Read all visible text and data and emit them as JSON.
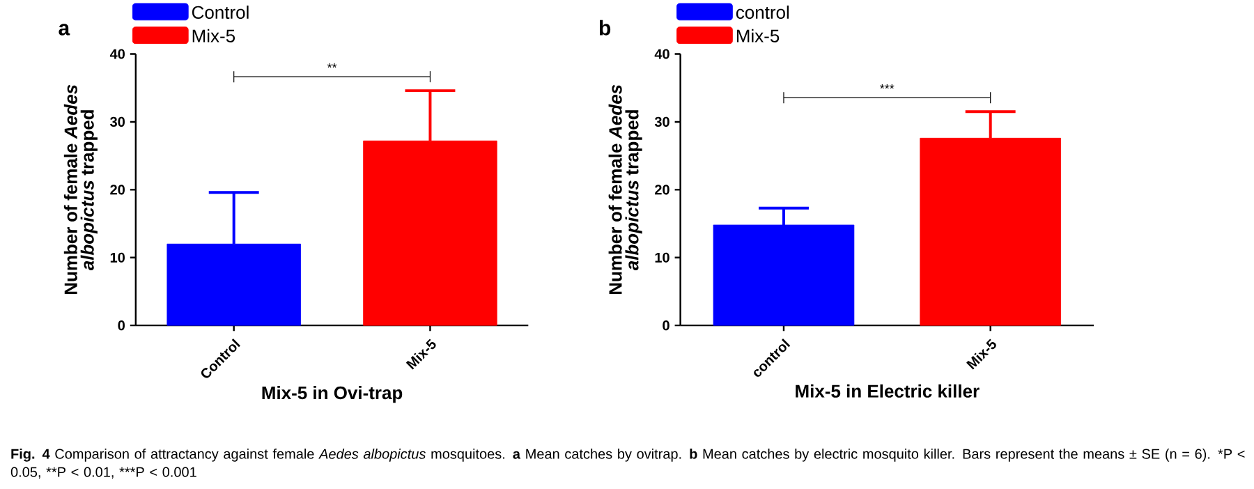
{
  "chart_data": [
    {
      "type": "bar",
      "title": "a",
      "xlabel": "Mix-5 in Ovi-trap",
      "ylabel": "Number of female *Aedes albopictus* trapped",
      "categories": [
        "Control",
        "Mix-5"
      ],
      "series": [
        {
          "name": "Control",
          "color": "#0000ff",
          "values": [
            12.0,
            null
          ],
          "errors": [
            7.6,
            null
          ]
        },
        {
          "name": "Mix-5",
          "color": "#ff0000",
          "values": [
            null,
            27.2
          ],
          "errors": [
            null,
            7.4
          ]
        }
      ],
      "ylim": [
        0,
        40
      ],
      "yticks": [
        0,
        10,
        20,
        30,
        40
      ],
      "legend": "top left",
      "annotations": [
        "**",
        "**Fig. 4** Comparison of attractancy against female *Aedes albopictus* mosquitoes. **a** Mean catches by ovitrap. **b** Mean catches by electric mosquito killer. Bars represent the means ± SE (n = 6).",
        "*P < 0.05,",
        "**P < 0.01,",
        "***P < 0.001"
      ]
    },
    {
      "type": "bar",
      "title": "b",
      "xlabel": "Mix-5 in Electric killer",
      "ylabel": "Number of female *Aedes albopictus* trapped",
      "categories": [
        "control",
        "Mix-5"
      ],
      "series": [
        {
          "name": "control",
          "color": "#0000ff",
          "values": [
            14.8,
            null
          ],
          "errors": [
            2.5,
            null
          ]
        },
        {
          "name": "Mix-5",
          "color": "#ff0000",
          "values": [
            null,
            27.6
          ],
          "errors": [
            null,
            3.9
          ]
        }
      ],
      "ylim": [
        0,
        40
      ],
      "yticks": [
        0,
        10,
        20,
        30,
        40
      ],
      "legend": "top left",
      "annotations": [
        "***"
      ]
    }
  ]
}
